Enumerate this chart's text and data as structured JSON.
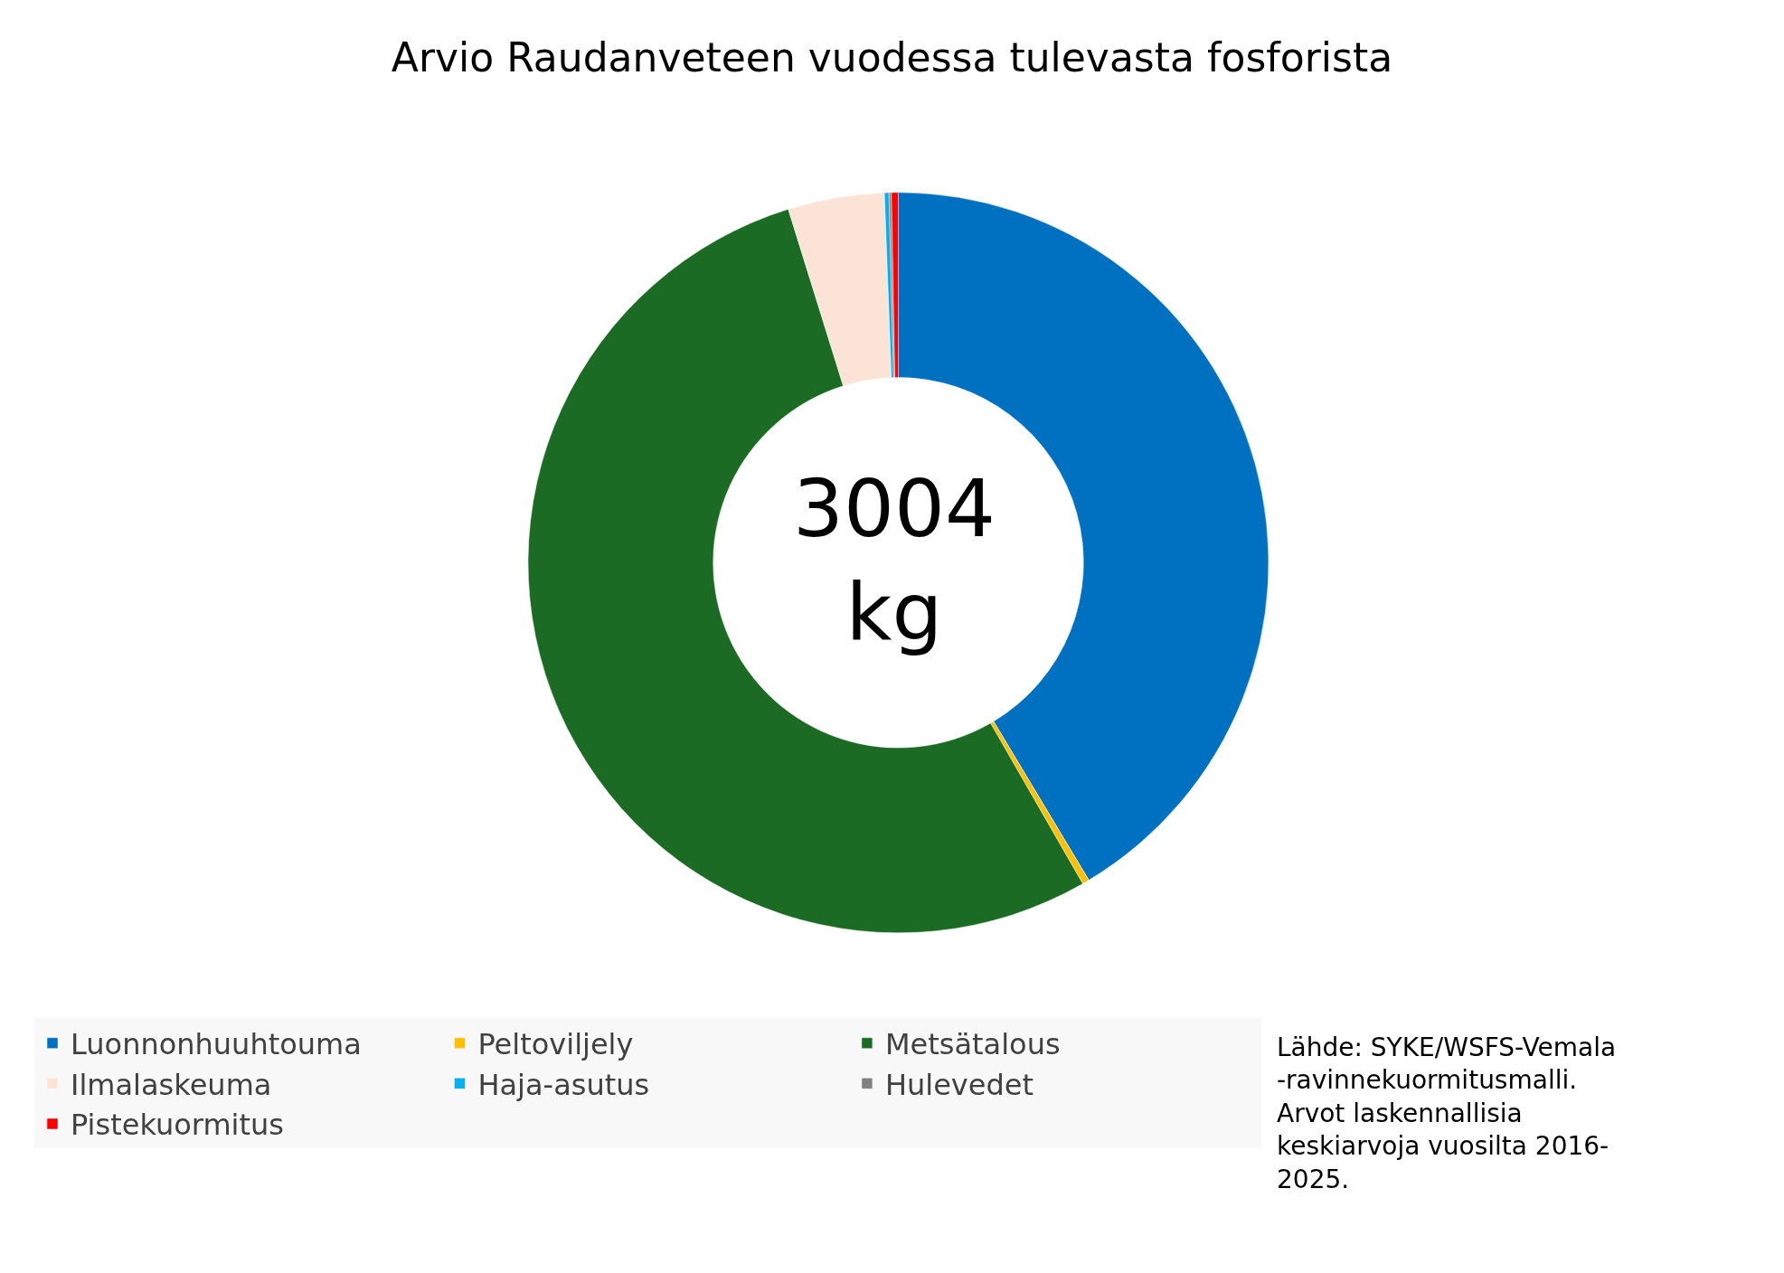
{
  "chart_data": {
    "type": "donut",
    "title": "Arvio Raudanveteen vuodessa tulevasta fosforista",
    "categories": [
      "Luonnonhuuhtouma",
      "Peltoviljely",
      "Metsätalous",
      "Ilmalaskeuma",
      "Haja-asutus",
      "Hulevedet",
      "Pistekuormitus"
    ],
    "values": [
      41.4,
      0.3,
      53.5,
      4.2,
      0.2,
      0.1,
      0.3
    ],
    "colors": [
      "#0070c0",
      "#ffc000",
      "#1b6b24",
      "#fbe3d6",
      "#00b0f0",
      "#808080",
      "#ff0000"
    ],
    "annotations": [
      "3004\nkg",
      "Lähde: SYKE/WSFS-Vemala\n-ravinnekuormitusmalli.\nArvot laskennallisia\nkeskiarvoja vuosilta 2016-\n2025."
    ],
    "legend": "bottom"
  }
}
